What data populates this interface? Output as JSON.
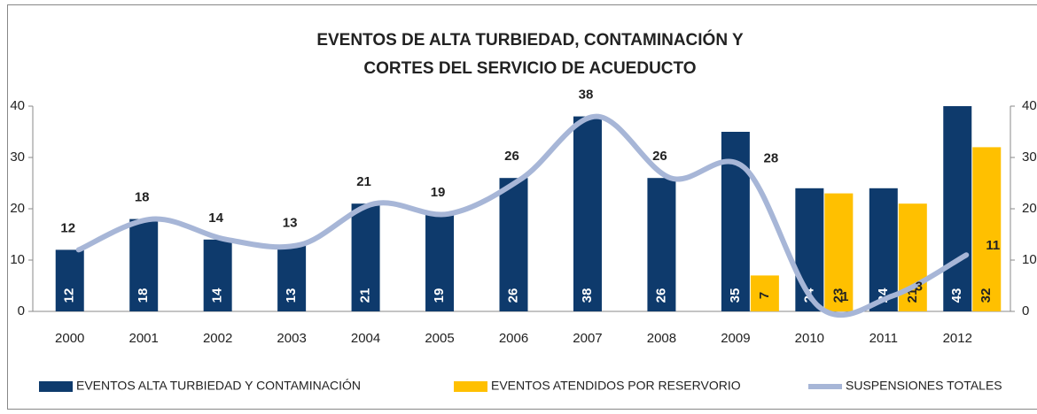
{
  "chart_data": {
    "type": "bar",
    "title": [
      "EVENTOS DE ALTA TURBIEDAD, CONTAMINACIÓN Y",
      "CORTES DEL SERVICIO DE ACUEDUCTO"
    ],
    "categories": [
      "2000",
      "2001",
      "2002",
      "2003",
      "2004",
      "2005",
      "2006",
      "2007",
      "2008",
      "2009",
      "2010",
      "2011",
      "2012"
    ],
    "series": [
      {
        "name": "EVENTOS ALTA TURBIEDAD Y CONTAMINACIÓN",
        "color": "#0e3a6c",
        "values": [
          12,
          18,
          14,
          13,
          21,
          19,
          26,
          38,
          26,
          35,
          24,
          24,
          43
        ]
      },
      {
        "name": "EVENTOS ATENDIDOS POR RESERVORIO",
        "color": "#ffc000",
        "values": [
          null,
          null,
          null,
          null,
          null,
          null,
          null,
          null,
          null,
          7,
          23,
          21,
          32
        ]
      },
      {
        "name": "SUSPENSIONES TOTALES",
        "color": "#a7b6d7",
        "type": "line",
        "axis": "y2",
        "values": [
          12,
          18,
          14,
          13,
          21,
          19,
          26,
          38,
          26,
          28,
          1,
          3,
          11
        ]
      }
    ],
    "ylim": [
      0,
      40
    ],
    "yticks": [
      0,
      10,
      20,
      30,
      40
    ],
    "y2lim": [
      0,
      40
    ],
    "y2ticks": [
      0,
      10,
      20,
      30,
      40
    ],
    "legend": "bottom"
  }
}
